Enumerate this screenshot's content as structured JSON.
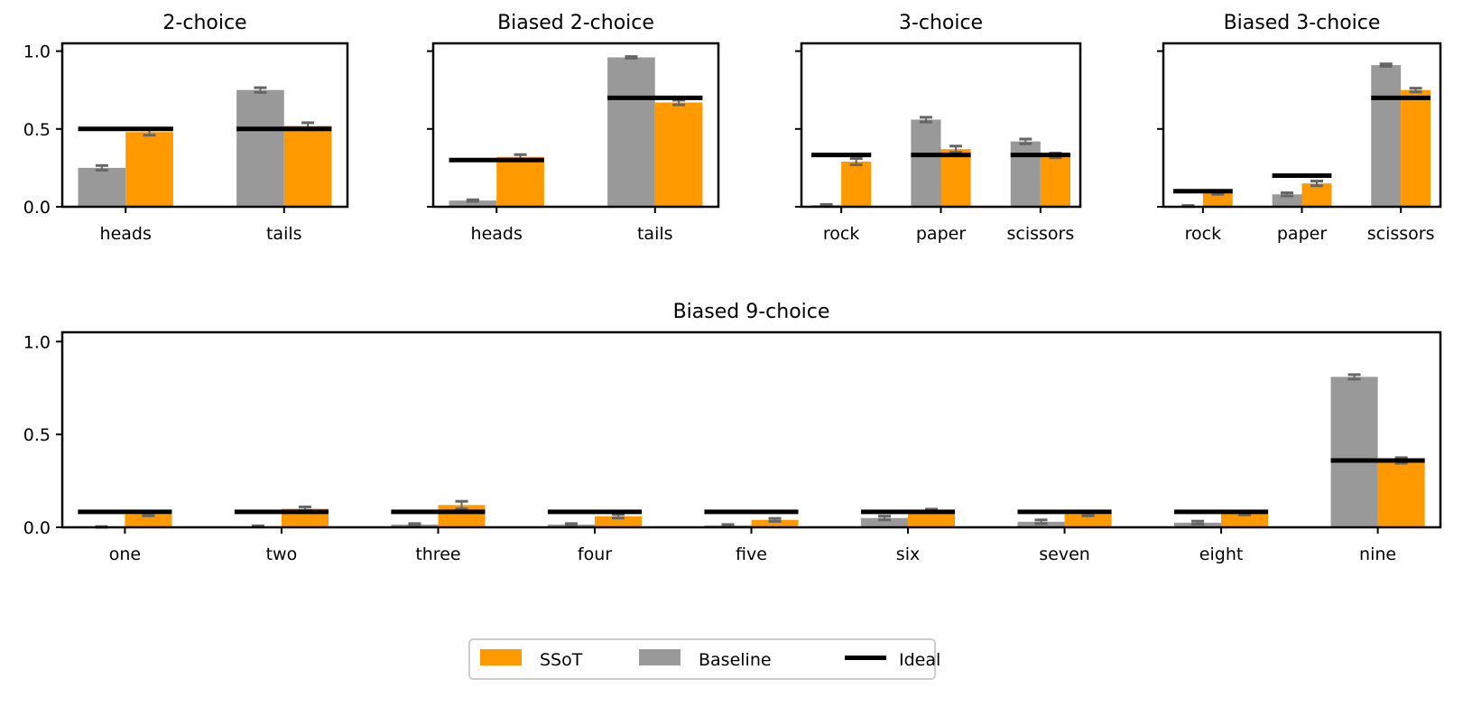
{
  "chart_data": [
    {
      "type": "bar",
      "title": "2-choice",
      "categories": [
        "heads",
        "tails"
      ],
      "series": [
        {
          "name": "Baseline",
          "values": [
            0.25,
            0.75
          ],
          "err": [
            0.015,
            0.015
          ]
        },
        {
          "name": "SSoT",
          "values": [
            0.48,
            0.52
          ],
          "err": [
            0.02,
            0.02
          ]
        }
      ],
      "ideal": [
        0.5,
        0.5
      ],
      "ylim": [
        0,
        1.05
      ],
      "yticks": [
        "0.0",
        "0.5",
        "1.0"
      ]
    },
    {
      "type": "bar",
      "title": "Biased 2-choice",
      "categories": [
        "heads",
        "tails"
      ],
      "series": [
        {
          "name": "Baseline",
          "values": [
            0.04,
            0.96
          ],
          "err": [
            0.005,
            0.005
          ]
        },
        {
          "name": "SSoT",
          "values": [
            0.32,
            0.67
          ],
          "err": [
            0.015,
            0.015
          ]
        }
      ],
      "ideal": [
        0.3,
        0.7
      ],
      "ylim": [
        0,
        1.05
      ],
      "yticks": [
        "",
        "",
        ""
      ]
    },
    {
      "type": "bar",
      "title": "3-choice",
      "categories": [
        "rock",
        "paper",
        "scissors"
      ],
      "series": [
        {
          "name": "Baseline",
          "values": [
            0.01,
            0.56,
            0.42
          ],
          "err": [
            0.005,
            0.015,
            0.015
          ]
        },
        {
          "name": "SSoT",
          "values": [
            0.29,
            0.37,
            0.33
          ],
          "err": [
            0.02,
            0.02,
            0.015
          ]
        }
      ],
      "ideal": [
        0.333,
        0.333,
        0.333
      ],
      "ylim": [
        0,
        1.05
      ],
      "yticks": [
        "",
        "",
        ""
      ]
    },
    {
      "type": "bar",
      "title": "Biased 3-choice",
      "categories": [
        "rock",
        "paper",
        "scissors"
      ],
      "series": [
        {
          "name": "Baseline",
          "values": [
            0.005,
            0.08,
            0.91
          ],
          "err": [
            0.003,
            0.01,
            0.008
          ]
        },
        {
          "name": "SSoT",
          "values": [
            0.09,
            0.15,
            0.75
          ],
          "err": [
            0.01,
            0.015,
            0.012
          ]
        }
      ],
      "ideal": [
        0.1,
        0.2,
        0.7
      ],
      "ylim": [
        0,
        1.05
      ],
      "yticks": [
        "",
        "",
        ""
      ]
    },
    {
      "type": "bar",
      "title": "Biased 9-choice",
      "categories": [
        "one",
        "two",
        "three",
        "four",
        "five",
        "six",
        "seven",
        "eight",
        "nine"
      ],
      "series": [
        {
          "name": "Baseline",
          "values": [
            0.002,
            0.005,
            0.015,
            0.015,
            0.01,
            0.05,
            0.03,
            0.025,
            0.81
          ],
          "err": [
            0.002,
            0.003,
            0.005,
            0.005,
            0.005,
            0.01,
            0.01,
            0.008,
            0.012
          ]
        },
        {
          "name": "SSoT",
          "values": [
            0.07,
            0.1,
            0.12,
            0.06,
            0.04,
            0.09,
            0.07,
            0.075,
            0.36
          ],
          "err": [
            0.008,
            0.01,
            0.02,
            0.01,
            0.008,
            0.008,
            0.008,
            0.008,
            0.015
          ]
        }
      ],
      "ideal": [
        0.083,
        0.083,
        0.083,
        0.083,
        0.083,
        0.083,
        0.083,
        0.083,
        0.36
      ],
      "ylim": [
        0,
        1.05
      ],
      "yticks": [
        "0.0",
        "0.5",
        "1.0"
      ]
    }
  ],
  "legend": {
    "items": [
      {
        "label": "SSoT",
        "color": "#ff9900"
      },
      {
        "label": "Baseline",
        "color": "#999999"
      },
      {
        "label": "Ideal",
        "color": "#000000"
      }
    ],
    "placement": "bottom-center"
  },
  "colors": {
    "ssot": "#ff9900",
    "baseline": "#999999",
    "ideal": "#000000",
    "errorbar": "#666666"
  }
}
